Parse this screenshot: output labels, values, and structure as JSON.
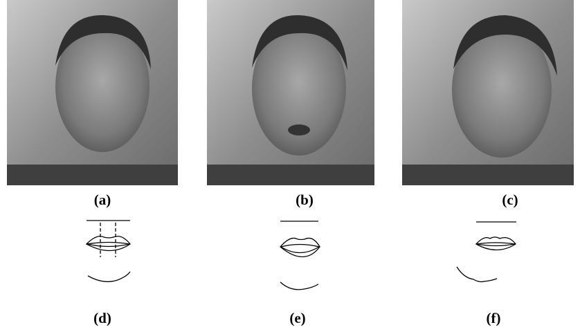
{
  "figure": {
    "panels": [
      "(a)",
      "(b)",
      "(c)",
      "(d)",
      "(e)",
      "(f)"
    ]
  }
}
